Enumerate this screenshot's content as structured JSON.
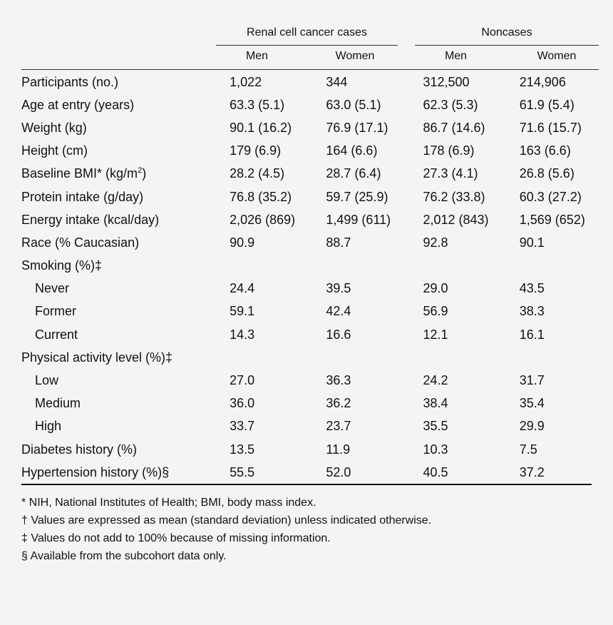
{
  "table": {
    "group_headers": [
      "Renal cell cancer cases",
      "Noncases"
    ],
    "sub_headers": [
      "Men",
      "Women",
      "Men",
      "Women"
    ],
    "rows": [
      {
        "label": "Participants (no.)",
        "indent": false,
        "values": [
          "1,022",
          "344",
          "312,500",
          "214,906"
        ]
      },
      {
        "label": "Age at entry (years)",
        "indent": false,
        "values": [
          "63.3 (5.1)",
          "63.0 (5.1)",
          "62.3 (5.3)",
          "61.9 (5.4)"
        ]
      },
      {
        "label": "Weight (kg)",
        "indent": false,
        "values": [
          "90.1 (16.2)",
          "76.9 (17.1)",
          "86.7 (14.6)",
          "71.6 (15.7)"
        ]
      },
      {
        "label": "Height (cm)",
        "indent": false,
        "values": [
          "179 (6.9)",
          "164 (6.6)",
          "178 (6.9)",
          "163 (6.6)"
        ]
      },
      {
        "label": "Baseline BMI* (kg/m",
        "sup": "2",
        "label_end": ")",
        "indent": false,
        "values": [
          "28.2 (4.5)",
          "28.7 (6.4)",
          "27.3 (4.1)",
          "26.8 (5.6)"
        ]
      },
      {
        "label": "Protein intake (g/day)",
        "indent": false,
        "values": [
          "76.8 (35.2)",
          "59.7 (25.9)",
          "76.2 (33.8)",
          "60.3 (27.2)"
        ]
      },
      {
        "label": "Energy intake (kcal/day)",
        "indent": false,
        "values": [
          "2,026 (869)",
          "1,499 (611)",
          "2,012 (843)",
          "1,569 (652)"
        ]
      },
      {
        "label": "Race (% Caucasian)",
        "indent": false,
        "values": [
          "90.9",
          "88.7",
          "92.8",
          "90.1"
        ]
      },
      {
        "label": "Smoking (%)‡",
        "indent": false,
        "values": [
          "",
          "",
          "",
          ""
        ]
      },
      {
        "label": "Never",
        "indent": true,
        "values": [
          "24.4",
          "39.5",
          "29.0",
          "43.5"
        ]
      },
      {
        "label": "Former",
        "indent": true,
        "values": [
          "59.1",
          "42.4",
          "56.9",
          "38.3"
        ]
      },
      {
        "label": "Current",
        "indent": true,
        "values": [
          "14.3",
          "16.6",
          "12.1",
          "16.1"
        ]
      },
      {
        "label": "Physical activity level (%)‡",
        "indent": false,
        "values": [
          "",
          "",
          "",
          ""
        ]
      },
      {
        "label": "Low",
        "indent": true,
        "values": [
          "27.0",
          "36.3",
          "24.2",
          "31.7"
        ]
      },
      {
        "label": "Medium",
        "indent": true,
        "values": [
          "36.0",
          "36.2",
          "38.4",
          "35.4"
        ]
      },
      {
        "label": "High",
        "indent": true,
        "values": [
          "33.7",
          "23.7",
          "35.5",
          "29.9"
        ]
      },
      {
        "label": "Diabetes history (%)",
        "indent": false,
        "values": [
          "13.5",
          "11.9",
          "10.3",
          "7.5"
        ]
      },
      {
        "label": "Hypertension history (%)§",
        "indent": false,
        "values": [
          "55.5",
          "52.0",
          "40.5",
          "37.2"
        ]
      }
    ]
  },
  "footnotes": [
    "* NIH, National Institutes of Health; BMI, body mass index.",
    "† Values are expressed as mean (standard deviation) unless indicated otherwise.",
    "‡ Values do not add to 100% because of missing information.",
    "§ Available from the subcohort data only."
  ]
}
